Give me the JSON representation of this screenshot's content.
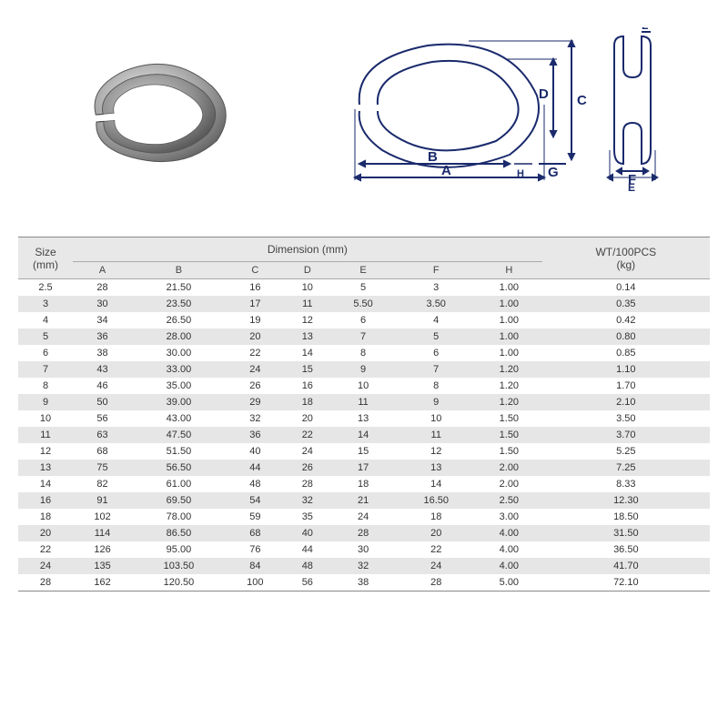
{
  "header": {
    "size_label": "Size",
    "size_unit": "(mm)",
    "dimension_label": "Dimension (mm)",
    "wt_label": "WT/100PCS",
    "wt_unit": "(kg)",
    "dimension_columns": [
      "A",
      "B",
      "C",
      "D",
      "E",
      "F",
      "H"
    ]
  },
  "diagram_labels": [
    "A",
    "B",
    "C",
    "D",
    "E",
    "F",
    "G",
    "H",
    "L"
  ],
  "table": {
    "columns": [
      "Size",
      "A",
      "B",
      "C",
      "D",
      "E",
      "F",
      "H",
      "WT"
    ],
    "rows": [
      [
        "2.5",
        "28",
        "21.50",
        "16",
        "10",
        "5",
        "3",
        "1.00",
        "0.14"
      ],
      [
        "3",
        "30",
        "23.50",
        "17",
        "11",
        "5.50",
        "3.50",
        "1.00",
        "0.35"
      ],
      [
        "4",
        "34",
        "26.50",
        "19",
        "12",
        "6",
        "4",
        "1.00",
        "0.42"
      ],
      [
        "5",
        "36",
        "28.00",
        "20",
        "13",
        "7",
        "5",
        "1.00",
        "0.80"
      ],
      [
        "6",
        "38",
        "30.00",
        "22",
        "14",
        "8",
        "6",
        "1.00",
        "0.85"
      ],
      [
        "7",
        "43",
        "33.00",
        "24",
        "15",
        "9",
        "7",
        "1.20",
        "1.10"
      ],
      [
        "8",
        "46",
        "35.00",
        "26",
        "16",
        "10",
        "8",
        "1.20",
        "1.70"
      ],
      [
        "9",
        "50",
        "39.00",
        "29",
        "18",
        "11",
        "9",
        "1.20",
        "2.10"
      ],
      [
        "10",
        "56",
        "43.00",
        "32",
        "20",
        "13",
        "10",
        "1.50",
        "3.50"
      ],
      [
        "11",
        "63",
        "47.50",
        "36",
        "22",
        "14",
        "11",
        "1.50",
        "3.70"
      ],
      [
        "12",
        "68",
        "51.50",
        "40",
        "24",
        "15",
        "12",
        "1.50",
        "5.25"
      ],
      [
        "13",
        "75",
        "56.50",
        "44",
        "26",
        "17",
        "13",
        "2.00",
        "7.25"
      ],
      [
        "14",
        "82",
        "61.00",
        "48",
        "28",
        "18",
        "14",
        "2.00",
        "8.33"
      ],
      [
        "16",
        "91",
        "69.50",
        "54",
        "32",
        "21",
        "16.50",
        "2.50",
        "12.30"
      ],
      [
        "18",
        "102",
        "78.00",
        "59",
        "35",
        "24",
        "18",
        "3.00",
        "18.50"
      ],
      [
        "20",
        "114",
        "86.50",
        "68",
        "40",
        "28",
        "20",
        "4.00",
        "31.50"
      ],
      [
        "22",
        "126",
        "95.00",
        "76",
        "44",
        "30",
        "22",
        "4.00",
        "36.50"
      ],
      [
        "24",
        "135",
        "103.50",
        "84",
        "48",
        "32",
        "24",
        "4.00",
        "41.70"
      ],
      [
        "28",
        "162",
        "120.50",
        "100",
        "56",
        "38",
        "28",
        "5.00",
        "72.10"
      ]
    ]
  },
  "style": {
    "header_bg": "#e8e8e8",
    "row_alt_bg": "#e6e6e6",
    "row_bg": "#ffffff",
    "border_color": "#888888",
    "text_color": "#333333",
    "font_size_head": 12,
    "font_size_body": 11,
    "diagram_stroke": "#1a2a6c"
  }
}
